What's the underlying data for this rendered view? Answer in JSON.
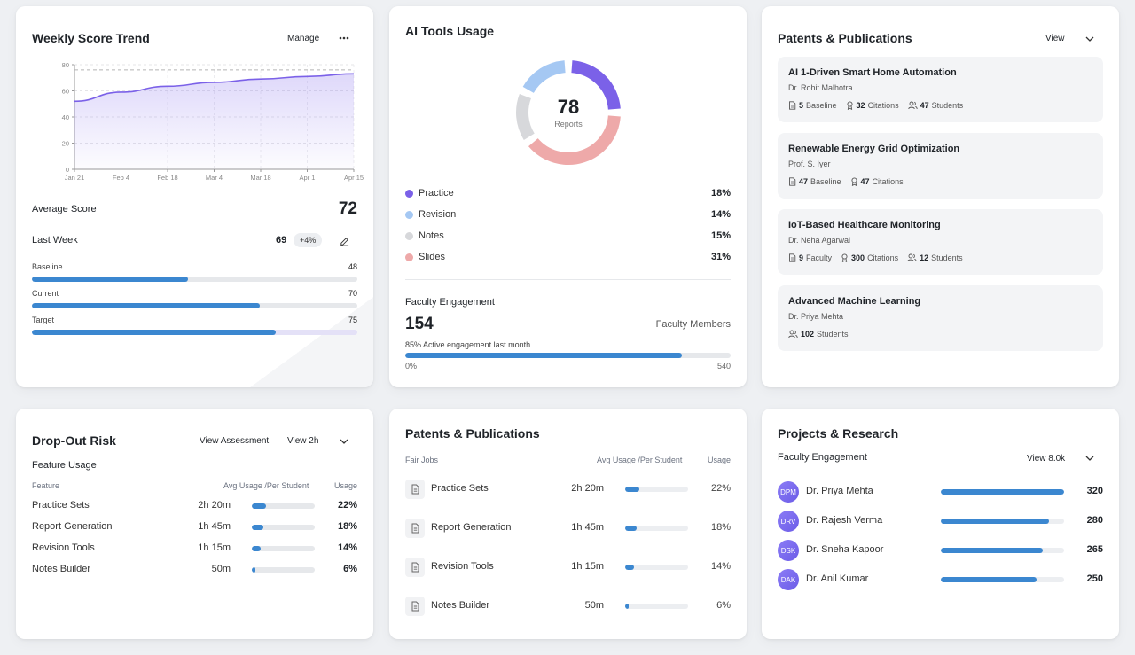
{
  "weekly": {
    "title": "Weekly Score Trend",
    "manage_label": "Manage",
    "more_icon": "more-horizontal-icon",
    "avg_label": "Average Score",
    "avg_value": "72",
    "last_week_label": "Last Week",
    "last_week_value": "69",
    "change_badge": "+4%",
    "edit_icon": "edit-icon",
    "bars": [
      {
        "label": "Baseline",
        "value": "48",
        "pct": 48
      },
      {
        "label": "Current",
        "value": "70",
        "pct": 70
      },
      {
        "label": "Target",
        "value": "75",
        "pct": 75
      }
    ]
  },
  "chart_data": {
    "type": "area",
    "title": "",
    "xlabel": "",
    "ylabel": "",
    "x": [
      "Jan 21",
      "Feb 4",
      "Feb 18",
      "Mar 4",
      "Mar 18",
      "Apr 1",
      "Apr 15"
    ],
    "x_ticks": [
      "Jan 21",
      "Feb 4",
      "Feb 18",
      "Mar 4",
      "Mar 18",
      "Apr 1",
      "Apr 15"
    ],
    "y_ticks": [
      "0",
      "20",
      "40",
      "60",
      "80"
    ],
    "values": [
      52,
      59,
      63.5,
      66.5,
      69,
      71,
      73
    ],
    "ylim": [
      0,
      80
    ],
    "reference_line": 76,
    "grid": true,
    "series_color": "#7b61e8"
  },
  "ai_tools": {
    "title": "AI Tools Usage",
    "donut_value": "78",
    "donut_label": "Reports",
    "legend": [
      {
        "label": "Practice",
        "pct": "18%",
        "color": "#7b61e8"
      },
      {
        "label": "Revision",
        "pct": "14%",
        "color": "#a5c8f3"
      },
      {
        "label": "Notes",
        "pct": "15%",
        "color": "#d7d8db"
      },
      {
        "label": "Slides",
        "pct": "31%",
        "color": "#eea9a9"
      }
    ],
    "faculty_label": "Faculty Engagement",
    "faculty_value": "154",
    "faculty_members_label": "Faculty Members",
    "engagement_text": "85% Active engagement last month",
    "engagement_pct": 85,
    "range_min": "0%",
    "range_max": "540"
  },
  "patents_top": {
    "title": "Patents & Publications",
    "view_label": "View",
    "items": [
      {
        "title": "AI 1-Driven Smart Home Automation",
        "author": "Dr. Rohit Malhotra",
        "stats": [
          {
            "icon": "file-icon",
            "num": "5",
            "label": "Baseline"
          },
          {
            "icon": "award-icon",
            "num": "32",
            "label": "Citations"
          },
          {
            "icon": "users-icon",
            "num": "47",
            "label": "Students"
          }
        ]
      },
      {
        "title": "Renewable Energy Grid Optimization",
        "author": "Prof. S. Iyer",
        "stats": [
          {
            "icon": "file-icon",
            "num": "47",
            "label": "Baseline"
          },
          {
            "icon": "award-icon",
            "num": "47",
            "label": "Citations"
          }
        ]
      },
      {
        "title": "IoT-Based Healthcare Monitoring",
        "author": "Dr. Neha Agarwal",
        "stats": [
          {
            "icon": "file-icon",
            "num": "9",
            "label": "Faculty"
          },
          {
            "icon": "award-icon",
            "num": "300",
            "label": "Citations"
          },
          {
            "icon": "users-icon",
            "num": "12",
            "label": "Students"
          }
        ]
      },
      {
        "title": "Advanced Machine Learning",
        "author": "Dr. Priya Mehta",
        "stats": [
          {
            "icon": "users-icon",
            "num": "102",
            "label": "Students"
          }
        ]
      }
    ]
  },
  "dropout": {
    "title": "Drop-Out Risk",
    "view_assessment_label": "View Assessment",
    "view_2h_label": "View 2h",
    "section_label": "Feature Usage",
    "col_feature": "Feature",
    "col_avg": "Avg Usage /Per Student",
    "col_usage": "Usage",
    "rows": [
      {
        "name": "Practice Sets",
        "time": "2h 20m",
        "pct": "22%",
        "fill": 22
      },
      {
        "name": "Report Generation",
        "time": "1h 45m",
        "pct": "18%",
        "fill": 18
      },
      {
        "name": "Revision Tools",
        "time": "1h 15m",
        "pct": "14%",
        "fill": 14
      },
      {
        "name": "Notes Builder",
        "time": "50m",
        "pct": "6%",
        "fill": 6
      }
    ]
  },
  "patents_bottom": {
    "title": "Patents & Publications",
    "col_jobs": "Fair Jobs",
    "col_avg": "Avg Usage /Per Student",
    "col_usage": "Usage",
    "rows": [
      {
        "name": "Practice Sets",
        "time": "2h 20m",
        "pct": "22%",
        "fill": 22
      },
      {
        "name": "Report Generation",
        "time": "1h 45m",
        "pct": "18%",
        "fill": 18
      },
      {
        "name": "Revision Tools",
        "time": "1h 15m",
        "pct": "14%",
        "fill": 14
      },
      {
        "name": "Notes Builder",
        "time": "50m",
        "pct": "6%",
        "fill": 6
      }
    ]
  },
  "projects": {
    "title": "Projects & Research",
    "section_label": "Faculty Engagement",
    "view_label": "View 8.0k",
    "rows": [
      {
        "initials": "DPM",
        "name": "Dr. Priya Mehta",
        "value": "320",
        "fill": 100
      },
      {
        "initials": "DRV",
        "name": "Dr. Rajesh Verma",
        "value": "280",
        "fill": 88
      },
      {
        "initials": "DSK",
        "name": "Dr. Sneha Kapoor",
        "value": "265",
        "fill": 83
      },
      {
        "initials": "DAK",
        "name": "Dr. Anil Kumar",
        "value": "250",
        "fill": 78
      }
    ]
  }
}
